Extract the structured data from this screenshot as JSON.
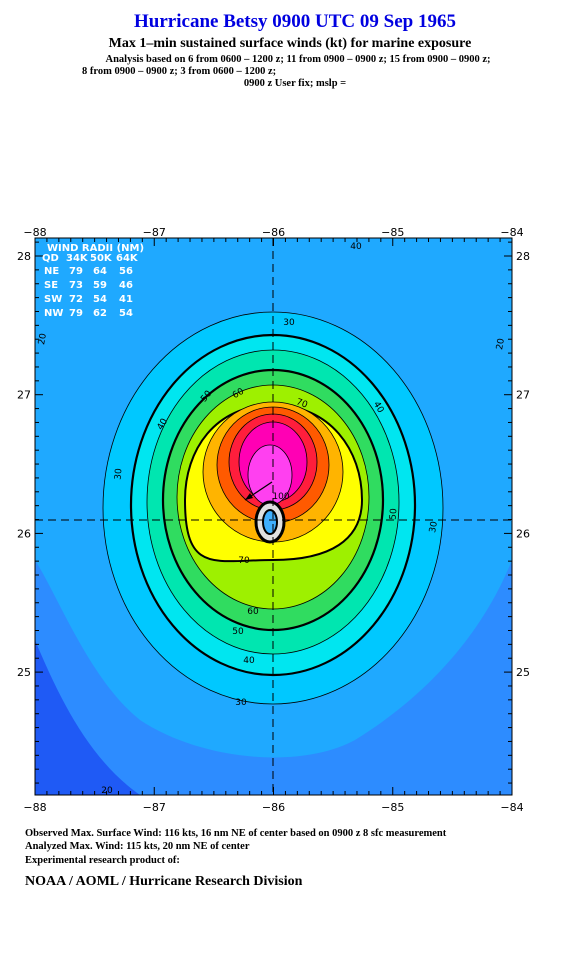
{
  "header": {
    "title": "Hurricane Betsy 0900 UTC 09 Sep 1965",
    "subtitle": "Max 1–min sustained surface winds (kt) for marine exposure",
    "analysis": [
      "Analysis based on  6 from 0600 – 1200 z;  11 from 0900 – 0900 z;  15 from 0900 – 0900 z;",
      "8 from 0900 – 0900 z;  3 from 0600 – 1200 z;",
      "0900 z User fix; mslp ="
    ]
  },
  "map": {
    "x_labels": [
      "−88",
      "−87",
      "−86",
      "−85",
      "−84"
    ],
    "y_labels": [
      "28",
      "27",
      "26",
      "25"
    ],
    "wind_radii": {
      "title": "WIND RADII (NM)",
      "columns": [
        "QD",
        "34K",
        "50K",
        "64K"
      ],
      "rows": [
        [
          "NE",
          79,
          64,
          56
        ],
        [
          "SE",
          73,
          59,
          46
        ],
        [
          "SW",
          72,
          54,
          41
        ],
        [
          "NW",
          79,
          62,
          54
        ]
      ]
    },
    "contour_labels": [
      "40",
      "20",
      "20",
      "30",
      "40",
      "50",
      "60",
      "70",
      "40",
      "30",
      "50",
      "30",
      "70",
      "60",
      "50",
      "40",
      "30",
      "20",
      "100"
    ]
  },
  "footer": {
    "lines": [
      "Observed Max. Surface Wind: 116 kts, 16 nm NE of center based on 0900 z 8 sfc measurement",
      "Analyzed Max. Wind: 115 kts, 20 nm NE of center",
      "Experimental research product of:"
    ],
    "org": "NOAA / AOML / Hurricane Research Division"
  }
}
